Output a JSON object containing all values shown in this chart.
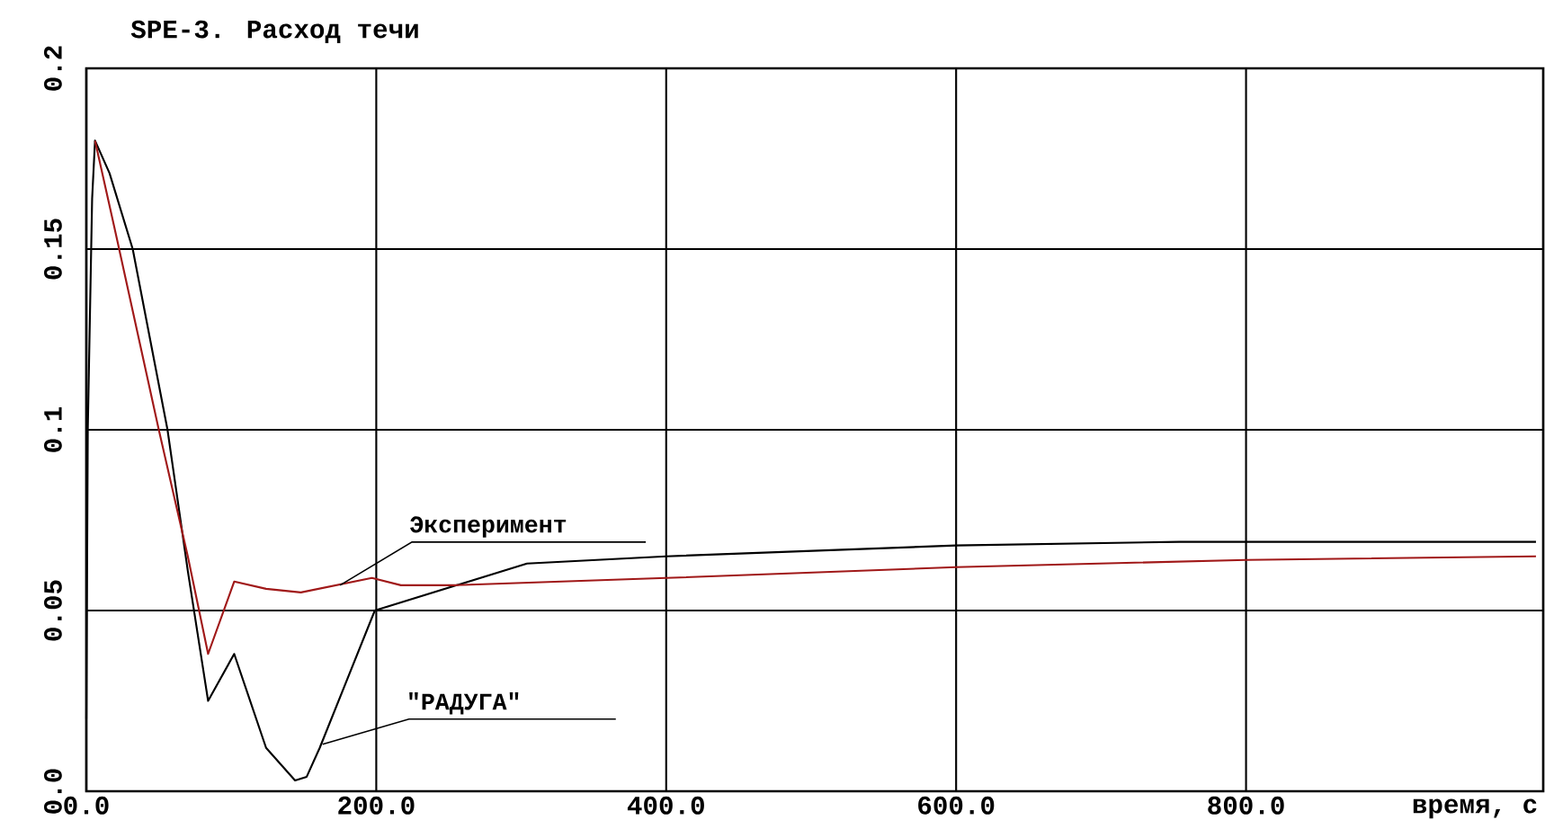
{
  "chart_data": {
    "type": "line",
    "title": "SPE-3. Расход течи",
    "xlabel": "время, с",
    "xlim": [
      0,
      1005
    ],
    "ylim": [
      0,
      0.2
    ],
    "xticks": [
      {
        "value": 0,
        "label": "0.0"
      },
      {
        "value": 200,
        "label": "200.0"
      },
      {
        "value": 400,
        "label": "400.0"
      },
      {
        "value": 600,
        "label": "600.0"
      },
      {
        "value": 800,
        "label": "800.0"
      }
    ],
    "yticks": [
      {
        "value": 0,
        "label": "0.0"
      },
      0.05,
      0.1,
      0.15,
      0.2
    ],
    "grid": true,
    "series": [
      {
        "color": "#000000",
        "x": [
          0,
          1,
          4,
          6,
          16,
          32,
          56,
          70,
          84,
          102,
          124,
          144,
          152,
          161,
          199,
          304,
          400,
          600,
          754,
          1000
        ],
        "values": [
          0.02,
          0.1,
          0.164,
          0.18,
          0.171,
          0.15,
          0.1,
          0.061,
          0.025,
          0.038,
          0.012,
          0.003,
          0.004,
          0.012,
          0.05,
          0.063,
          0.065,
          0.068,
          0.069,
          0.069
        ]
      },
      {
        "color": "#a01818",
        "x": [
          6,
          21,
          50,
          70,
          84,
          102,
          124,
          148,
          197,
          217,
          254,
          400,
          600,
          800,
          1000
        ],
        "values": [
          0.18,
          0.153,
          0.1,
          0.065,
          0.038,
          0.058,
          0.056,
          0.055,
          0.059,
          0.057,
          0.057,
          0.059,
          0.062,
          0.064,
          0.065
        ]
      }
    ],
    "annotations": [
      {
        "text": "Эксперимент",
        "x": 175,
        "y": 0.057
      },
      {
        "text": "\"РАДУГА\"",
        "x": 163,
        "y": 0.013
      }
    ]
  }
}
